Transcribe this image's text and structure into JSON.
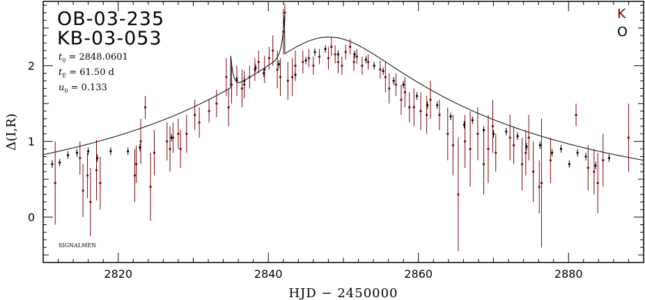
{
  "chart_data": {
    "type": "scatter",
    "title_lines": [
      "OB-03-235",
      "KB-03-053"
    ],
    "params": {
      "t0_label": "t",
      "t0_sub": "0",
      "t0_value": "= 2848.0601",
      "tE_label": "t",
      "tE_sub": "E",
      "tE_value": "= 61.50 d",
      "u0_label": "u",
      "u0_sub": "0",
      "u0_value": "= 0.133"
    },
    "credit": "SIGNALMEN",
    "xlabel": "HJD − 2450000",
    "ylabel": "Δ(I,R)",
    "xlim": [
      2810,
      2890
    ],
    "ylim": [
      -0.6,
      2.85
    ],
    "xticks": [
      2820,
      2840,
      2860,
      2880
    ],
    "yticks": [
      0,
      1,
      2
    ],
    "model": {
      "name": "binary-lens model",
      "t0": 2848.06,
      "tE": 61.5,
      "u0": 0.133,
      "baseline": 0.21,
      "caustic_entry": 2835.0,
      "caustic_exit": 2842.2,
      "peak_entry": 2.13,
      "peak_exit": 2.75
    },
    "series": [
      {
        "name": "K",
        "color": "#7a0000",
        "points": [
          [
            2811.6,
            0.45,
            0.55
          ],
          [
            2814.9,
            0.78,
            0.22
          ],
          [
            2815.3,
            0.35,
            0.35
          ],
          [
            2815.9,
            0.55,
            0.3
          ],
          [
            2816.3,
            0.2,
            0.45
          ],
          [
            2817.1,
            0.62,
            0.4
          ],
          [
            2817.6,
            0.45,
            0.35
          ],
          [
            2822.2,
            0.55,
            0.35
          ],
          [
            2822.4,
            0.7,
            0.25
          ],
          [
            2823.0,
            1.0,
            0.3
          ],
          [
            2823.6,
            1.45,
            0.15
          ],
          [
            2824.3,
            0.4,
            0.45
          ],
          [
            2824.8,
            0.85,
            0.3
          ],
          [
            2826.5,
            1.0,
            0.25
          ],
          [
            2826.9,
            0.9,
            0.3
          ],
          [
            2827.3,
            1.05,
            0.2
          ],
          [
            2828.0,
            1.1,
            0.2
          ],
          [
            2828.3,
            0.9,
            0.25
          ],
          [
            2829.1,
            1.1,
            0.25
          ],
          [
            2830.2,
            1.35,
            0.2
          ],
          [
            2830.8,
            1.25,
            0.2
          ],
          [
            2832.1,
            1.4,
            0.15
          ],
          [
            2833.1,
            1.5,
            0.18
          ],
          [
            2834.4,
            1.85,
            0.25
          ],
          [
            2834.7,
            1.45,
            0.25
          ],
          [
            2835.1,
            1.75,
            0.25
          ],
          [
            2835.8,
            1.8,
            0.2
          ],
          [
            2836.5,
            1.7,
            0.25
          ],
          [
            2836.8,
            1.75,
            0.18
          ],
          [
            2837.5,
            1.85,
            0.15
          ],
          [
            2838.2,
            1.95,
            0.15
          ],
          [
            2838.7,
            2.05,
            0.15
          ],
          [
            2839.5,
            1.95,
            0.18
          ],
          [
            2840.1,
            2.1,
            0.15
          ],
          [
            2840.6,
            2.2,
            0.2
          ],
          [
            2841.2,
            1.95,
            0.25
          ],
          [
            2841.6,
            1.85,
            0.25
          ],
          [
            2842.0,
            2.45,
            0.3
          ],
          [
            2842.2,
            2.7,
            0.12
          ],
          [
            2842.6,
            1.8,
            0.25
          ],
          [
            2843.2,
            1.85,
            0.25
          ],
          [
            2843.6,
            2.0,
            0.2
          ],
          [
            2844.6,
            2.05,
            0.15
          ],
          [
            2845.4,
            2.1,
            0.12
          ],
          [
            2846.0,
            2.0,
            0.12
          ],
          [
            2846.8,
            2.12,
            0.1
          ],
          [
            2848.0,
            2.1,
            0.15
          ],
          [
            2848.4,
            2.25,
            0.12
          ],
          [
            2848.9,
            2.15,
            0.12
          ],
          [
            2849.3,
            2.05,
            0.15
          ],
          [
            2849.8,
            2.0,
            0.12
          ],
          [
            2850.3,
            2.18,
            0.1
          ],
          [
            2850.9,
            2.25,
            0.1
          ],
          [
            2851.4,
            2.05,
            0.12
          ],
          [
            2851.8,
            2.12,
            0.1
          ],
          [
            2852.5,
            2.0,
            0.12
          ],
          [
            2853.3,
            2.05,
            0.1
          ],
          [
            2854.9,
            1.95,
            0.12
          ],
          [
            2855.6,
            1.85,
            0.2
          ],
          [
            2856.1,
            1.7,
            0.2
          ],
          [
            2857.0,
            1.75,
            0.15
          ],
          [
            2857.7,
            1.55,
            0.2
          ],
          [
            2858.2,
            1.65,
            0.2
          ],
          [
            2858.8,
            1.45,
            0.2
          ],
          [
            2859.4,
            1.45,
            0.25
          ],
          [
            2860.3,
            1.4,
            0.25
          ],
          [
            2861.1,
            1.35,
            0.25
          ],
          [
            2861.6,
            1.55,
            0.25
          ],
          [
            2862.8,
            1.35,
            0.2
          ],
          [
            2863.9,
            1.1,
            0.35
          ],
          [
            2864.6,
            0.95,
            0.4
          ],
          [
            2865.3,
            0.3,
            0.75
          ],
          [
            2866.2,
            1.0,
            0.35
          ],
          [
            2866.9,
            0.9,
            0.5
          ],
          [
            2867.9,
            1.1,
            0.35
          ],
          [
            2868.7,
            0.7,
            0.4
          ],
          [
            2869.3,
            0.9,
            0.45
          ],
          [
            2869.9,
            1.2,
            0.35
          ],
          [
            2870.3,
            0.85,
            0.25
          ],
          [
            2872.2,
            1.05,
            0.3
          ],
          [
            2872.7,
            0.95,
            0.25
          ],
          [
            2873.8,
            0.7,
            0.35
          ],
          [
            2874.3,
            0.85,
            0.3
          ],
          [
            2874.7,
            1.05,
            0.3
          ],
          [
            2875.3,
            0.6,
            0.4
          ],
          [
            2876.1,
            0.4,
            0.35
          ],
          [
            2876.4,
            0.45,
            0.85
          ],
          [
            2877.6,
            0.75,
            0.3
          ],
          [
            2881.0,
            1.35,
            0.15
          ],
          [
            2882.6,
            0.65,
            0.3
          ],
          [
            2883.4,
            0.6,
            0.3
          ],
          [
            2883.9,
            0.45,
            0.4
          ],
          [
            2884.6,
            0.75,
            0.35
          ],
          [
            2888.0,
            1.05,
            0.45
          ]
        ]
      },
      {
        "name": "O",
        "color": "#000000",
        "points": [
          [
            2811.2,
            0.7,
            0.05
          ],
          [
            2812.2,
            0.72,
            0.05
          ],
          [
            2813.3,
            0.82,
            0.05
          ],
          [
            2814.5,
            0.85,
            0.05
          ],
          [
            2816.0,
            0.87,
            0.05
          ],
          [
            2817.2,
            0.78,
            0.05
          ],
          [
            2819.0,
            0.87,
            0.05
          ],
          [
            2821.3,
            0.87,
            0.05
          ],
          [
            2822.9,
            0.92,
            0.05
          ],
          [
            2827.1,
            1.05,
            0.05
          ],
          [
            2835.8,
            1.83,
            0.05
          ],
          [
            2836.8,
            1.8,
            0.05
          ],
          [
            2838.3,
            1.97,
            0.05
          ],
          [
            2839.4,
            1.9,
            0.05
          ],
          [
            2841.4,
            2.02,
            0.05
          ],
          [
            2843.6,
            1.88,
            0.05
          ],
          [
            2845.0,
            2.07,
            0.05
          ],
          [
            2846.2,
            2.18,
            0.05
          ],
          [
            2847.6,
            2.22,
            0.05
          ],
          [
            2849.3,
            2.15,
            0.05
          ],
          [
            2851.5,
            2.15,
            0.05
          ],
          [
            2853.0,
            2.08,
            0.05
          ],
          [
            2854.1,
            2.0,
            0.05
          ],
          [
            2855.3,
            1.93,
            0.05
          ],
          [
            2856.7,
            1.8,
            0.05
          ],
          [
            2858.0,
            1.75,
            0.05
          ],
          [
            2859.8,
            1.6,
            0.05
          ],
          [
            2861.2,
            1.48,
            0.05
          ],
          [
            2862.5,
            1.48,
            0.05
          ],
          [
            2864.3,
            1.33,
            0.05
          ],
          [
            2866.1,
            1.22,
            0.05
          ],
          [
            2867.2,
            1.28,
            0.05
          ],
          [
            2868.7,
            1.15,
            0.05
          ],
          [
            2870.0,
            1.1,
            0.05
          ],
          [
            2871.7,
            1.13,
            0.05
          ],
          [
            2873.2,
            1.07,
            0.05
          ],
          [
            2874.4,
            0.93,
            0.05
          ],
          [
            2876.2,
            0.95,
            0.05
          ],
          [
            2877.8,
            0.85,
            0.05
          ],
          [
            2879.0,
            0.9,
            0.05
          ],
          [
            2880.1,
            0.7,
            0.05
          ],
          [
            2881.2,
            0.85,
            0.05
          ],
          [
            2882.3,
            0.8,
            0.05
          ],
          [
            2883.6,
            0.68,
            0.05
          ],
          [
            2885.4,
            0.78,
            0.05
          ]
        ]
      }
    ]
  }
}
